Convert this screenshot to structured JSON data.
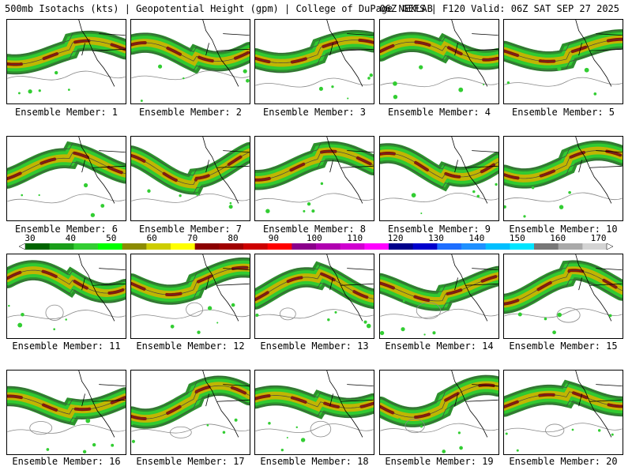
{
  "header": {
    "left": "500mb Isotachs (kts) | Geopotential Height (gpm) | College of DuPage NEXLAB",
    "right": "06Z GEFS | F120 Valid: 06Z SAT SEP 27 2025"
  },
  "color_scale": {
    "ticks": [
      "30",
      "40",
      "50",
      "60",
      "70",
      "80",
      "90",
      "100",
      "110",
      "120",
      "130",
      "140",
      "150",
      "160",
      "170"
    ],
    "colors": [
      "#006400",
      "#1a9e1a",
      "#32cd32",
      "#00ff00",
      "#8b8b00",
      "#cdcd00",
      "#ffff00",
      "#8b0000",
      "#a00000",
      "#cd0000",
      "#ff0000",
      "#8b008b",
      "#b000b0",
      "#d000d0",
      "#ff00ff",
      "#00008b",
      "#0000cd",
      "#1e6eff",
      "#1e90ff",
      "#00bfff",
      "#00e5ff",
      "#777777",
      "#a9a9a9",
      "#d3d3d3"
    ]
  },
  "panels": [
    {
      "label": "Ensemble Member: 1",
      "icon": "wind-map"
    },
    {
      "label": "Ensemble Member: 2",
      "icon": "wind-map"
    },
    {
      "label": "Ensemble Member: 3",
      "icon": "wind-map"
    },
    {
      "label": "Ensemble Member: 4",
      "icon": "wind-map"
    },
    {
      "label": "Ensemble Member: 5",
      "icon": "wind-map"
    },
    {
      "label": "Ensemble Member: 6",
      "icon": "wind-map"
    },
    {
      "label": "Ensemble Member: 7",
      "icon": "wind-map"
    },
    {
      "label": "Ensemble Member: 8",
      "icon": "wind-map"
    },
    {
      "label": "Ensemble Member: 9",
      "icon": "wind-map"
    },
    {
      "label": "Ensemble Member: 10",
      "icon": "wind-map"
    },
    {
      "label": "Ensemble Member: 11",
      "icon": "wind-map"
    },
    {
      "label": "Ensemble Member: 12",
      "icon": "wind-map"
    },
    {
      "label": "Ensemble Member: 13",
      "icon": "wind-map"
    },
    {
      "label": "Ensemble Member: 14",
      "icon": "wind-map"
    },
    {
      "label": "Ensemble Member: 15",
      "icon": "wind-map"
    },
    {
      "label": "Ensemble Member: 16",
      "icon": "wind-map"
    },
    {
      "label": "Ensemble Member: 17",
      "icon": "wind-map"
    },
    {
      "label": "Ensemble Member: 18",
      "icon": "wind-map"
    },
    {
      "label": "Ensemble Member: 19",
      "icon": "wind-map"
    },
    {
      "label": "Ensemble Member: 20",
      "icon": "wind-map"
    }
  ]
}
